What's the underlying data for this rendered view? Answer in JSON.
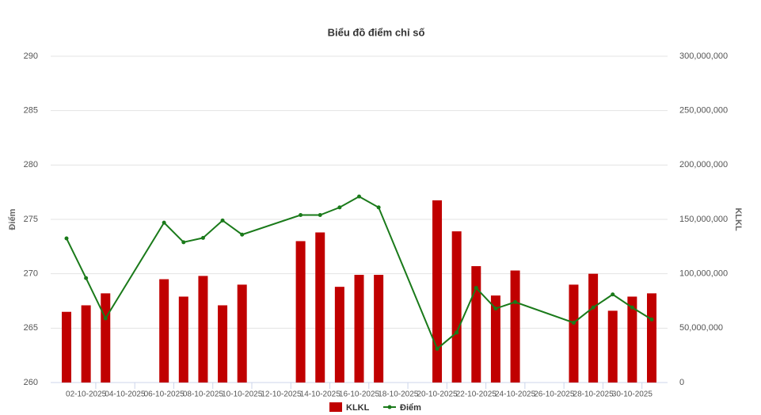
{
  "chart_data": {
    "type": "bar-line",
    "title": "Biểu đồ điểm chỉ số",
    "ylabel": "Điểm",
    "y2label": "KLKL",
    "x": [
      "01-10-2025",
      "02-10-2025",
      "03-10-2025",
      "06-10-2025",
      "07-10-2025",
      "08-10-2025",
      "09-10-2025",
      "10-10-2025",
      "13-10-2025",
      "14-10-2025",
      "15-10-2025",
      "16-10-2025",
      "17-10-2025",
      "20-10-2025",
      "21-10-2025",
      "22-10-2025",
      "23-10-2025",
      "24-10-2025",
      "27-10-2025",
      "28-10-2025",
      "29-10-2025",
      "30-10-2025",
      "31-10-2025"
    ],
    "xlim": [
      "01-10-2025",
      "31-10-2025"
    ],
    "xticks": [
      "02-10-2025",
      "04-10-2025",
      "06-10-2025",
      "08-10-2025",
      "10-10-2025",
      "12-10-2025",
      "14-10-2025",
      "16-10-2025",
      "18-10-2025",
      "20-10-2025",
      "22-10-2025",
      "24-10-2025",
      "26-10-2025",
      "28-10-2025",
      "30-10-2025"
    ],
    "series": [
      {
        "name": "KLKL",
        "kind": "bar",
        "axis": "y2",
        "color": "#c00000",
        "values": [
          65000000,
          71000000,
          82000000,
          95000000,
          79000000,
          98000000,
          71000000,
          90000000,
          130000000,
          138000000,
          88000000,
          99000000,
          99000000,
          167500000,
          139000000,
          107000000,
          80000000,
          103000000,
          90000000,
          100000000,
          66000000,
          79000000,
          82000000
        ]
      },
      {
        "name": "Điểm",
        "kind": "line",
        "axis": "y",
        "color": "#1a7a1a",
        "values": [
          273.25,
          269.6,
          265.9,
          274.7,
          272.9,
          273.3,
          274.9,
          273.6,
          275.4,
          275.4,
          276.1,
          277.1,
          276.1,
          263.1,
          264.6,
          268.7,
          266.8,
          267.4,
          265.5,
          266.9,
          268.1,
          266.9,
          265.8
        ]
      }
    ],
    "ylim": [
      260,
      290
    ],
    "yticks": [
      260,
      265,
      270,
      275,
      280,
      285,
      290
    ],
    "y2lim": [
      0,
      300000000
    ],
    "y2ticks": [
      0,
      {
        "value": 50000000,
        "label": "50,000,000"
      },
      {
        "value": 100000000,
        "label": "100,000,000"
      },
      {
        "value": 150000000,
        "label": "150,000,000"
      },
      {
        "value": 200000000,
        "label": "200,000,000"
      },
      {
        "value": 250000000,
        "label": "250,000,000"
      },
      {
        "value": 300000000,
        "label": "300,000,000"
      }
    ],
    "grid": true
  }
}
